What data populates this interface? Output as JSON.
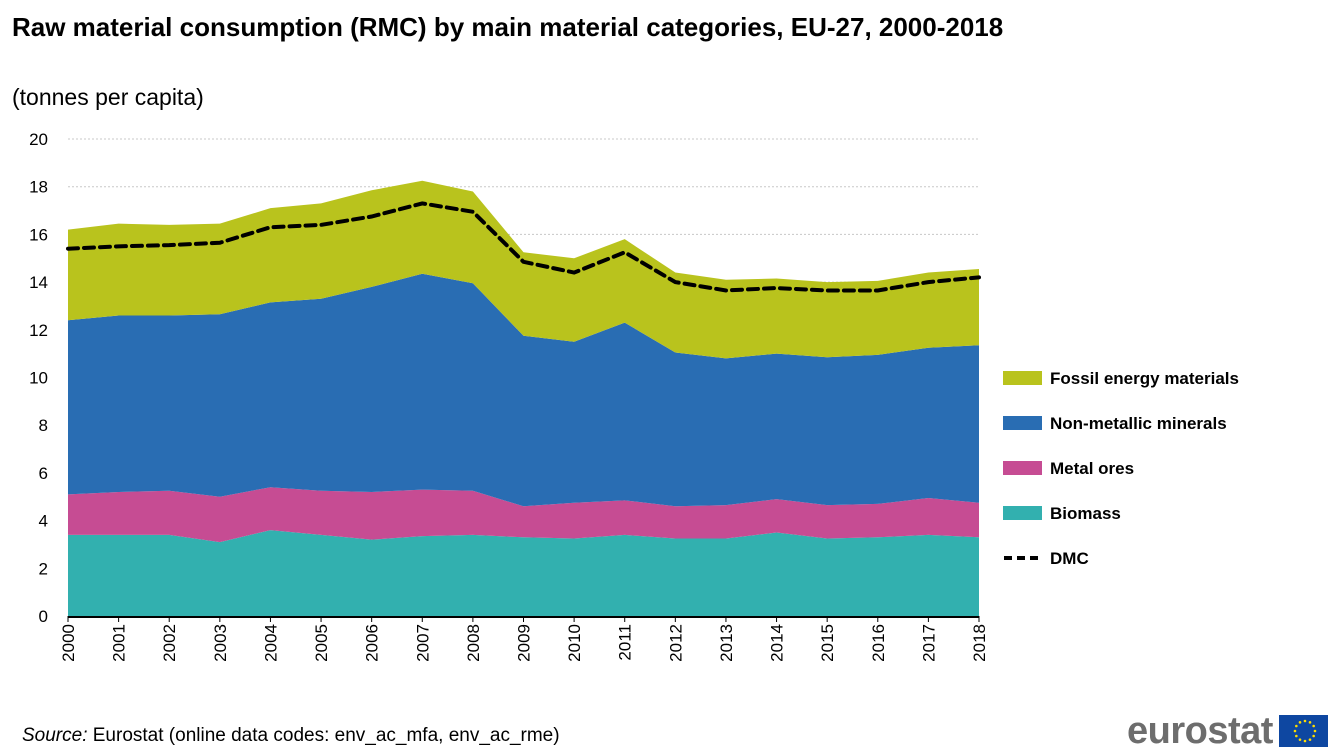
{
  "title": "Raw material consumption (RMC) by main material categories, EU-27, 2000-2018",
  "subtitle": "(tonnes per capita)",
  "source": {
    "label": "Source:",
    "text": " Eurostat (online data codes: env_ac_mfa, env_ac_rme)"
  },
  "logo": {
    "text": "eurostat"
  },
  "chart_data": {
    "type": "area",
    "stacked": true,
    "title": "Raw material consumption (RMC) by main material categories, EU-27, 2000-2018",
    "subtitle": "(tonnes per capita)",
    "x": [
      "2000",
      "2001",
      "2002",
      "2003",
      "2004",
      "2005",
      "2006",
      "2007",
      "2008",
      "2009",
      "2010",
      "2011",
      "2012",
      "2013",
      "2014",
      "2015",
      "2016",
      "2017",
      "2018"
    ],
    "ylim": [
      0,
      20
    ],
    "yticks": [
      "0",
      "2",
      "4",
      "6",
      "8",
      "10",
      "12",
      "14",
      "16",
      "18",
      "20"
    ],
    "grid": true,
    "legend_position": "right",
    "series": [
      {
        "name": "Biomass",
        "color": "#32b0af",
        "values": [
          3.4,
          3.4,
          3.4,
          3.1,
          3.6,
          3.4,
          3.2,
          3.35,
          3.4,
          3.3,
          3.25,
          3.4,
          3.25,
          3.25,
          3.5,
          3.25,
          3.3,
          3.4,
          3.3
        ]
      },
      {
        "name": "Metal ores",
        "color": "#c64c93",
        "values": [
          1.7,
          1.8,
          1.85,
          1.9,
          1.8,
          1.85,
          2.0,
          1.95,
          1.85,
          1.3,
          1.5,
          1.45,
          1.35,
          1.4,
          1.4,
          1.4,
          1.4,
          1.55,
          1.45
        ]
      },
      {
        "name": "Non-metallic minerals",
        "color": "#296db3",
        "values": [
          7.3,
          7.4,
          7.35,
          7.65,
          7.75,
          8.05,
          8.6,
          9.05,
          8.7,
          7.15,
          6.75,
          7.45,
          6.45,
          6.15,
          6.1,
          6.2,
          6.25,
          6.3,
          6.6
        ]
      },
      {
        "name": "Fossil energy materials",
        "color": "#b9c31d",
        "values": [
          3.8,
          3.85,
          3.8,
          3.8,
          3.95,
          4.0,
          4.05,
          3.9,
          3.85,
          3.5,
          3.5,
          3.5,
          3.35,
          3.3,
          3.15,
          3.15,
          3.1,
          3.15,
          3.2
        ]
      }
    ],
    "lines": [
      {
        "name": "DMC",
        "color": "#000000",
        "style": "dashed",
        "values": [
          15.4,
          15.5,
          15.55,
          15.65,
          16.3,
          16.4,
          16.75,
          17.3,
          16.95,
          14.85,
          14.4,
          15.25,
          14.0,
          13.65,
          13.75,
          13.65,
          13.65,
          14.0,
          14.2
        ]
      }
    ],
    "legend_order": [
      "Fossil energy materials",
      "Non-metallic minerals",
      "Metal ores",
      "Biomass",
      "DMC"
    ]
  }
}
